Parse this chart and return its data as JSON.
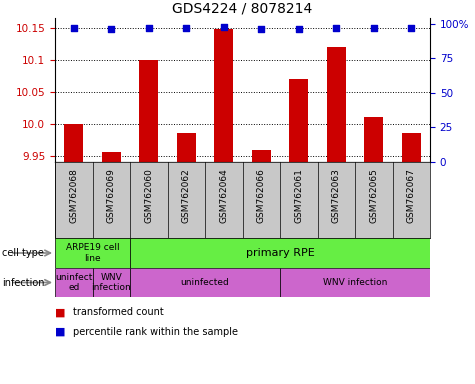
{
  "title": "GDS4224 / 8078214",
  "samples": [
    "GSM762068",
    "GSM762069",
    "GSM762060",
    "GSM762062",
    "GSM762064",
    "GSM762066",
    "GSM762061",
    "GSM762063",
    "GSM762065",
    "GSM762067"
  ],
  "transformed_counts": [
    10.0,
    9.955,
    10.1,
    9.985,
    10.148,
    9.958,
    10.07,
    10.12,
    10.01,
    9.985
  ],
  "percentile_ranks": [
    97,
    96,
    97,
    97,
    98,
    96,
    96,
    97,
    97,
    97
  ],
  "ylim_left": [
    9.94,
    10.165
  ],
  "ylim_right": [
    0,
    104.167
  ],
  "yticks_left": [
    9.95,
    10.0,
    10.05,
    10.1,
    10.15
  ],
  "yticks_right": [
    0,
    25,
    50,
    75,
    100
  ],
  "ytick_labels_right": [
    "0",
    "25",
    "50",
    "75",
    "100%"
  ],
  "bar_color": "#cc0000",
  "dot_color": "#0000cc",
  "green_color": "#66ee44",
  "purple_color": "#cc66cc",
  "gray_color": "#c8c8c8",
  "tick_color_left": "#cc0000",
  "tick_color_right": "#0000cc",
  "cell_type_split": 2,
  "infection_splits": [
    1,
    2,
    6
  ],
  "infection_labels": [
    "uninfect\ned",
    "WNV\ninfection",
    "uninfected",
    "WNV infection"
  ],
  "cell_type_labels": [
    "ARPE19 cell\nline",
    "primary RPE"
  ],
  "legend_labels": [
    "transformed count",
    "percentile rank within the sample"
  ],
  "legend_colors": [
    "#cc0000",
    "#0000cc"
  ]
}
